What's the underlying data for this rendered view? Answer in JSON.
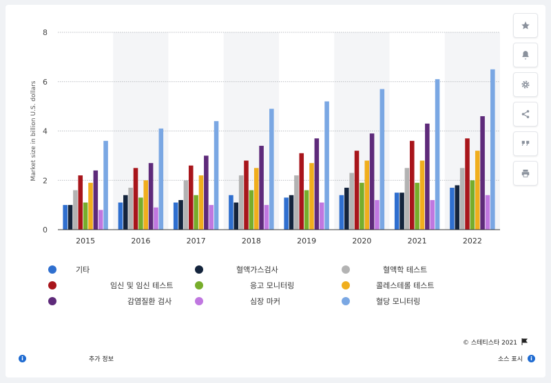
{
  "chart_data": {
    "type": "bar",
    "categories": [
      "2015",
      "2016",
      "2017",
      "2018",
      "2019",
      "2020",
      "2021",
      "2022"
    ],
    "ylabel": "Market size in billion U.S. dollars",
    "xlabel": "",
    "ylim": [
      0,
      8
    ],
    "yticks": [
      0,
      2,
      4,
      6,
      8
    ],
    "grid": true,
    "legend_position": "bottom",
    "series": [
      {
        "name": "기타",
        "color": "#2f6fcf",
        "values": [
          1.0,
          1.1,
          1.1,
          1.4,
          1.3,
          1.4,
          1.5,
          1.7
        ]
      },
      {
        "name": "혈액가스검사",
        "color": "#14243c",
        "values": [
          1.0,
          1.4,
          1.2,
          1.1,
          1.4,
          1.7,
          1.5,
          1.8
        ]
      },
      {
        "name": "혈액학 테스트",
        "color": "#b3b3b3",
        "values": [
          1.6,
          1.7,
          2.0,
          2.2,
          2.2,
          2.3,
          2.5,
          2.5
        ]
      },
      {
        "name": "임신 및 임신 테스트",
        "color": "#a8151b",
        "values": [
          2.2,
          2.5,
          2.6,
          2.8,
          3.1,
          3.2,
          3.6,
          3.7
        ]
      },
      {
        "name": "응고 모니터링",
        "color": "#77ad2b",
        "values": [
          1.1,
          1.3,
          1.4,
          1.6,
          1.6,
          1.9,
          1.9,
          2.0
        ]
      },
      {
        "name": "콜레스테롤 테스트",
        "color": "#f0ae1d",
        "values": [
          1.9,
          2.0,
          2.2,
          2.5,
          2.7,
          2.8,
          2.8,
          3.2
        ]
      },
      {
        "name": "감염질환 검사",
        "color": "#5e2a7a",
        "values": [
          2.4,
          2.7,
          3.0,
          3.4,
          3.7,
          3.9,
          4.3,
          4.6
        ]
      },
      {
        "name": "심장 마커",
        "color": "#c077e0",
        "values": [
          0.8,
          0.9,
          1.0,
          1.0,
          1.1,
          1.2,
          1.2,
          1.4
        ]
      },
      {
        "name": "혈당 모니터링",
        "color": "#7aa7e3",
        "values": [
          3.6,
          4.1,
          4.4,
          4.9,
          5.2,
          5.7,
          6.1,
          6.5
        ]
      }
    ]
  },
  "sidebar": {
    "icons": [
      "star-icon",
      "bell-icon",
      "gear-icon",
      "share-icon",
      "quote-icon",
      "print-icon"
    ]
  },
  "footer": {
    "credit": "© 스테티스타 2021",
    "more_info": "추가 정보",
    "source": "소스 표시"
  }
}
